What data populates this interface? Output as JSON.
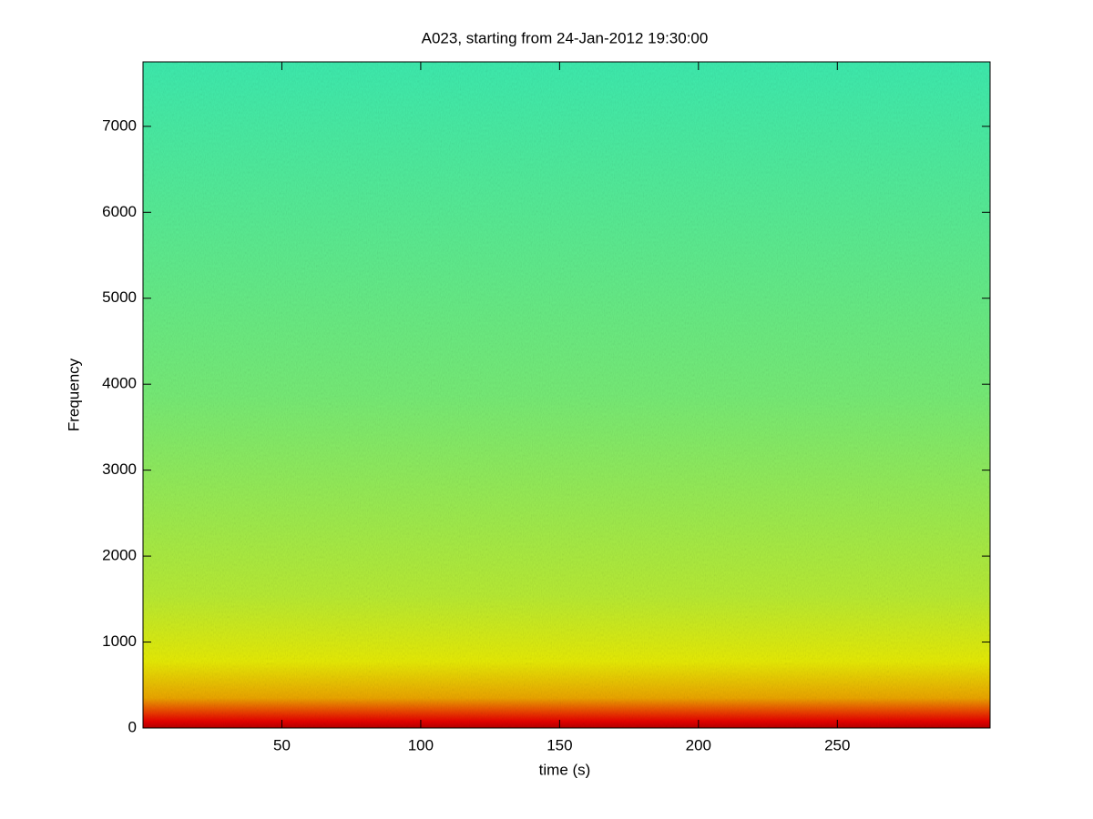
{
  "chart_data": {
    "type": "spectrogram",
    "title": "A023, starting from 24-Jan-2012 19:30:00",
    "x_label": "time (s)",
    "y_label": "Frequency",
    "colormap": "jet",
    "xlim": [
      0,
      305
    ],
    "xticks": [
      50,
      100,
      150,
      200,
      250
    ],
    "ylim": [
      0,
      7750
    ],
    "yticks": [
      0,
      1000,
      2000,
      3000,
      4000,
      5000,
      6000,
      7000
    ]
  }
}
